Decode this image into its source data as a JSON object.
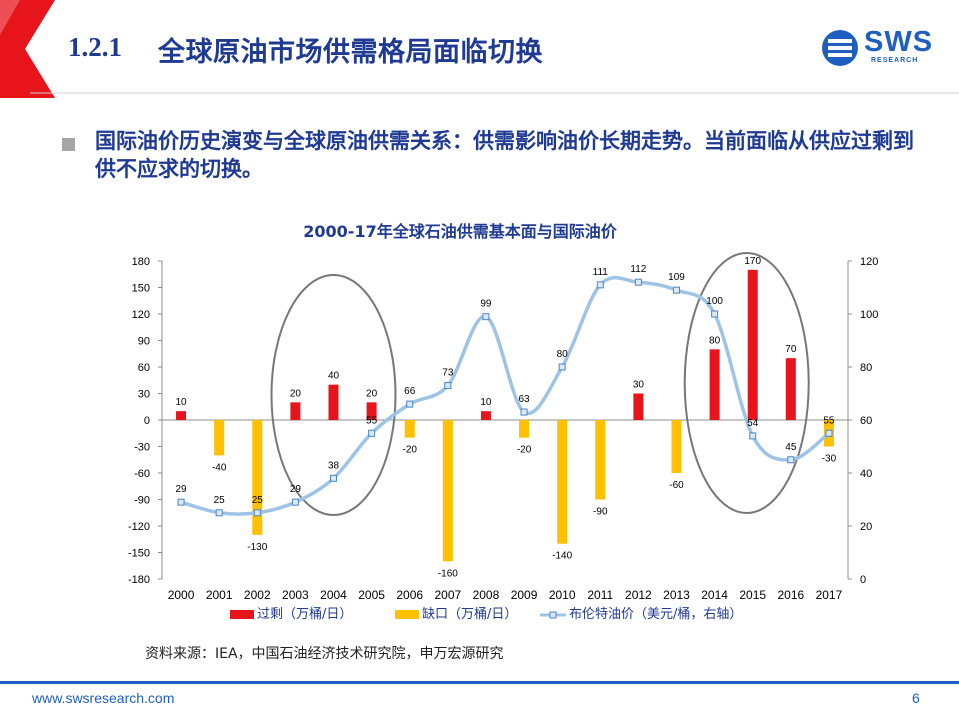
{
  "header": {
    "section_number": "1.2.1",
    "section_title": "全球原油市场供需格局面临切换",
    "logo_text": "SWS",
    "logo_subtext": "RESEARCH"
  },
  "bullet": {
    "text": "国际油价历史演变与全球原油供需关系：供需影响油价长期走势。当前面临从供应过剩到供不应求的切换。"
  },
  "source_note": "资料来源：IEA，中国石油经济技术研究院，申万宏源研究",
  "footer": {
    "url": "www.swsresearch.com",
    "page": "6"
  },
  "colors": {
    "surplus": "#e8141b",
    "deficit": "#ffc000",
    "brent": "#9dc3e6",
    "brent_marker": "#4a86c8",
    "title": "#1f3a93",
    "accent": "#1f5fbf"
  },
  "chart_data": {
    "type": "bar",
    "title": "2000-17年全球石油供需基本面与国际油价",
    "categories": [
      "2000",
      "2001",
      "2002",
      "2003",
      "2004",
      "2005",
      "2006",
      "2007",
      "2008",
      "2009",
      "2010",
      "2011",
      "2012",
      "2013",
      "2014",
      "2015",
      "2016",
      "2017"
    ],
    "left_axis": {
      "min": -180,
      "max": 180,
      "ticks": [
        180,
        150,
        120,
        90,
        60,
        30,
        0,
        -30,
        -60,
        -90,
        -120,
        -150,
        -180
      ]
    },
    "right_axis": {
      "min": 0,
      "max": 120,
      "ticks": [
        120,
        100,
        80,
        60,
        40,
        20,
        0
      ]
    },
    "series": [
      {
        "name": "过剩（万桶/日）",
        "type": "bar",
        "axis": "left",
        "values": [
          10,
          null,
          null,
          20,
          40,
          20,
          null,
          null,
          10,
          null,
          null,
          null,
          30,
          null,
          80,
          170,
          70,
          null
        ]
      },
      {
        "name": "缺口（万桶/日）",
        "type": "bar",
        "axis": "left",
        "values": [
          null,
          -40,
          -130,
          null,
          null,
          null,
          -20,
          -160,
          null,
          -20,
          -140,
          -90,
          null,
          -60,
          null,
          null,
          null,
          -30
        ]
      },
      {
        "name": "布伦特油价（美元/桶，右轴）",
        "type": "line",
        "axis": "right",
        "values": [
          29,
          25,
          25,
          29,
          38,
          55,
          66,
          73,
          99,
          63,
          80,
          111,
          112,
          109,
          100,
          54,
          45,
          55
        ]
      }
    ],
    "legend_position": "bottom",
    "grid": false
  }
}
